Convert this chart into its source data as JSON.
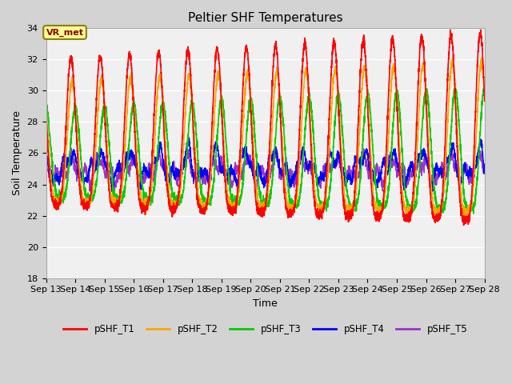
{
  "title": "Peltier SHF Temperatures",
  "xlabel": "Time",
  "ylabel": "Soil Temperature",
  "ylim": [
    18,
    34
  ],
  "yticks": [
    18,
    20,
    22,
    24,
    26,
    28,
    30,
    32,
    34
  ],
  "xtick_labels": [
    "Sep 13",
    "Sep 14",
    "Sep 15",
    "Sep 16",
    "Sep 17",
    "Sep 18",
    "Sep 19",
    "Sep 20",
    "Sep 21",
    "Sep 22",
    "Sep 23",
    "Sep 24",
    "Sep 25",
    "Sep 26",
    "Sep 27",
    "Sep 28"
  ],
  "colors": {
    "pSHF_T1": "#ff0000",
    "pSHF_T2": "#ffa500",
    "pSHF_T3": "#00cc00",
    "pSHF_T4": "#0000ff",
    "pSHF_T5": "#9933cc"
  },
  "annotation_text": "VR_met",
  "background_color": "#d3d3d3",
  "plot_bg_color": "#f0f0f0",
  "grid_color": "#ffffff",
  "title_fontsize": 11,
  "axis_fontsize": 9,
  "tick_fontsize": 8
}
